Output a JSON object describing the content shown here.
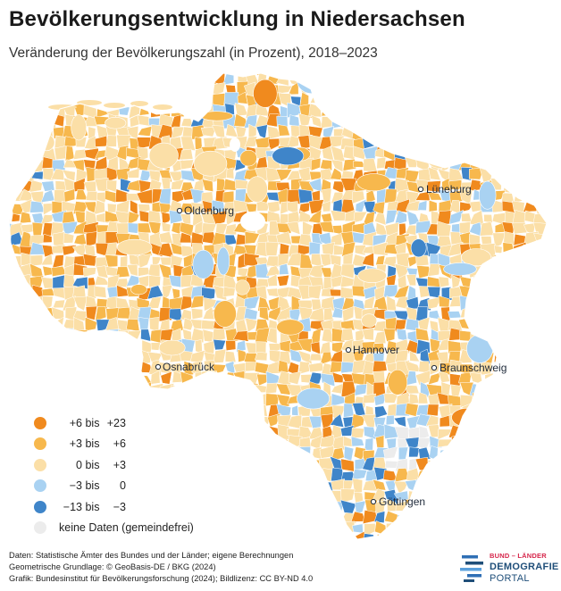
{
  "title": "Bevölkerungsentwicklung in Niedersachsen",
  "subtitle": "Veränderung der Bevölkerungszahl (in Prozent), 2018–2023",
  "map": {
    "region": "Niedersachsen",
    "cities": [
      {
        "name": "Oldenburg"
      },
      {
        "name": "Lüneburg"
      },
      {
        "name": "Osnabrück"
      },
      {
        "name": "Hannover"
      },
      {
        "name": "Braunschweig"
      },
      {
        "name": "Göttingen"
      }
    ]
  },
  "legend": [
    {
      "from": "+6",
      "to": "+23",
      "color": "#f08a1e"
    },
    {
      "from": "+3",
      "to": "+6",
      "color": "#f7b84d"
    },
    {
      "from": "0",
      "to": "+3",
      "color": "#fbdfa7"
    },
    {
      "from": "−3",
      "to": "0",
      "color": "#a9d2f2"
    },
    {
      "from": "−13",
      "to": "−3",
      "color": "#3f85c9"
    }
  ],
  "legend_bis": "bis",
  "legend_nodata": {
    "label": "keine Daten (gemeindefrei)",
    "color": "#ececec"
  },
  "footer": {
    "line1": "Daten: Statistische Ämter des Bundes und der Länder; eigene Berechnungen",
    "line2": "Geometrische Grundlage: © GeoBasis-DE / BKG (2024)",
    "line3": "Grafik: Bundesinstitut für Bevölkerungsforschung (2024); Bildlizenz: CC BY-ND 4.0"
  },
  "logo": {
    "line1": "BUND – LÄNDER",
    "line2": "DEMOGRAFIE",
    "line3": "PORTAL"
  }
}
